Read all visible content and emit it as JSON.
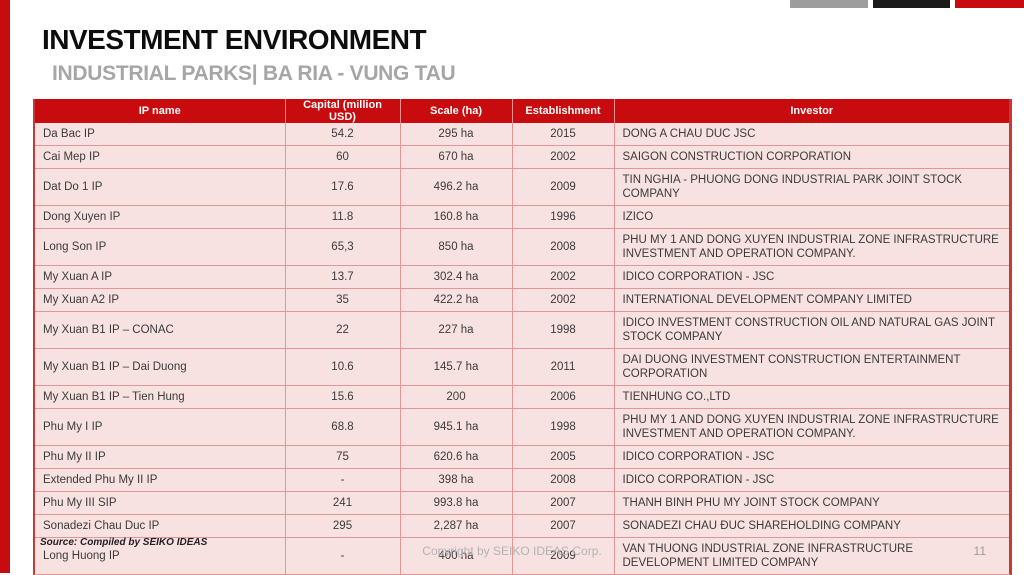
{
  "page": {
    "title": "INVESTMENT ENVIRONMENT",
    "subtitle": "INDUSTRIAL PARKS| BA RIA - VUNG TAU",
    "source": "Source: Compiled by SEIKO IDEAS",
    "copyright": "Copyright by SEIKO IDEAS Corp.",
    "page_number": "11"
  },
  "colors": {
    "accent_red": "#c80b0f",
    "row_pink": "#f8e2e1",
    "grid_pink": "#e29795",
    "deco_gray": "#9d9d9d",
    "deco_black": "#1b1b1b",
    "subtitle_gray": "#a6a6a6"
  },
  "table": {
    "columns": [
      "IP name",
      "Capital (million USD)",
      "Scale (ha)",
      "Establishment",
      "Investor"
    ],
    "rows": [
      {
        "ip_name": "Da Bac IP",
        "capital": "54.2",
        "scale": "295 ha",
        "establishment": "2015",
        "investor": "DONG A CHAU DUC JSC"
      },
      {
        "ip_name": "Cai Mep IP",
        "capital": "60",
        "scale": "670 ha",
        "establishment": "2002",
        "investor": "SAIGON CONSTRUCTION CORPORATION"
      },
      {
        "ip_name": "Dat Do 1 IP",
        "capital": "17.6",
        "scale": "496.2 ha",
        "establishment": "2009",
        "investor": "TIN NGHIA - PHUONG DONG INDUSTRIAL PARK JOINT STOCK COMPANY"
      },
      {
        "ip_name": "Dong Xuyen IP",
        "capital": "11.8",
        "scale": "160.8 ha",
        "establishment": "1996",
        "investor": "IZICO"
      },
      {
        "ip_name": "Long Son IP",
        "capital": "65,3",
        "scale": "850 ha",
        "establishment": "2008",
        "investor": "PHU MY 1 AND DONG XUYEN INDUSTRIAL ZONE INFRASTRUCTURE INVESTMENT AND OPERATION COMPANY."
      },
      {
        "ip_name": "My Xuan A IP",
        "capital": "13.7",
        "scale": "302.4 ha",
        "establishment": "2002",
        "investor": "IDICO CORPORATION - JSC"
      },
      {
        "ip_name": "My Xuan A2 IP",
        "capital": "35",
        "scale": "422.2 ha",
        "establishment": "2002",
        "investor": "INTERNATIONAL DEVELOPMENT COMPANY LIMITED"
      },
      {
        "ip_name": "My Xuan B1 IP  – CONAC",
        "capital": "22",
        "scale": "227 ha",
        "establishment": "1998",
        "investor": "IDICO INVESTMENT CONSTRUCTION OIL AND NATURAL GAS JOINT STOCK COMPANY"
      },
      {
        "ip_name": "My Xuan B1 IP – Dai Duong",
        "capital": "10.6",
        "scale": "145.7 ha",
        "establishment": "2011",
        "investor": "DAI DUONG INVESTMENT CONSTRUCTION ENTERTAINMENT CORPORATION"
      },
      {
        "ip_name": "My Xuan B1 IP – Tien Hung",
        "capital": "15.6",
        "scale": "200",
        "establishment": "2006",
        "investor": "TIENHUNG CO.,LTD"
      },
      {
        "ip_name": "Phu My I IP",
        "capital": "68.8",
        "scale": "945.1 ha",
        "establishment": "1998",
        "investor": "PHU MY 1 AND DONG XUYEN INDUSTRIAL ZONE INFRASTRUCTURE INVESTMENT AND OPERATION COMPANY."
      },
      {
        "ip_name": "Phu My II IP",
        "capital": "75",
        "scale": "620.6 ha",
        "establishment": "2005",
        "investor": "IDICO CORPORATION - JSC"
      },
      {
        "ip_name": "Extended Phu My II IP",
        "capital": "-",
        "scale": "398 ha",
        "establishment": "2008",
        "investor": "IDICO CORPORATION - JSC"
      },
      {
        "ip_name": "Phu My III SIP",
        "capital": "241",
        "scale": "993.8 ha",
        "establishment": "2007",
        "investor": "THANH BINH PHU MY JOINT STOCK COMPANY"
      },
      {
        "ip_name": "Sonadezi Chau Duc IP",
        "capital": "295",
        "scale": "2,287 ha",
        "establishment": "2007",
        "investor": "SONADEZI CHAU ĐUC SHAREHOLDING COMPANY"
      },
      {
        "ip_name": "Long Huong IP",
        "capital": "-",
        "scale": "400 ha",
        "establishment": "2009",
        "investor": "VAN THUONG INDUSTRIAL ZONE INFRASTRUCTURE DEVELOPMENT LIMITED COMPANY"
      }
    ]
  }
}
